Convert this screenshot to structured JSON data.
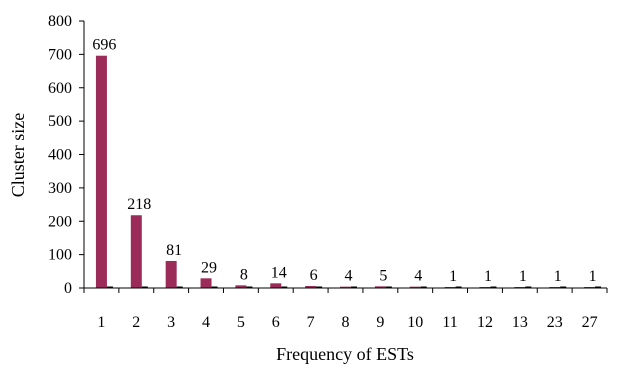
{
  "chart_data": {
    "type": "bar",
    "title": "",
    "xlabel": "Frequency of ESTs",
    "ylabel": "Cluster size",
    "categories": [
      "1",
      "2",
      "3",
      "4",
      "5",
      "6",
      "7",
      "8",
      "9",
      "10",
      "11",
      "12",
      "13",
      "23",
      "27"
    ],
    "values": [
      696,
      218,
      81,
      29,
      8,
      14,
      6,
      4,
      5,
      4,
      1,
      1,
      1,
      1,
      1
    ],
    "data_labels": [
      "696",
      "218",
      "81",
      "29",
      "8",
      "14",
      "6",
      "4",
      "5",
      "4",
      "1",
      "1",
      "1",
      "1",
      "1"
    ],
    "ylim": [
      0,
      800
    ],
    "yticks": [
      0,
      100,
      200,
      300,
      400,
      500,
      600,
      700,
      800
    ],
    "grid": false,
    "legend": "none",
    "bar_color": "#9b2c5a",
    "axis_color": "#000000"
  }
}
